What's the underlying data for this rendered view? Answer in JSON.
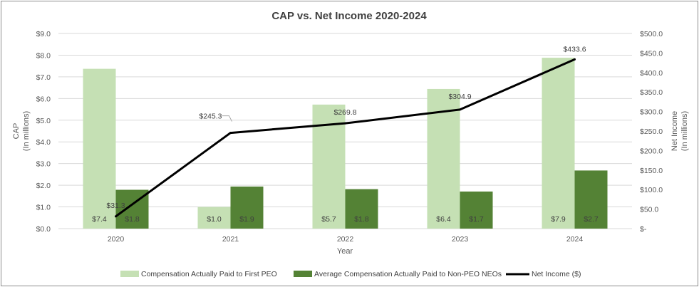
{
  "chart_data": {
    "type": "bar+line",
    "title": "CAP vs. Net Income 2020-2024",
    "xlabel": "Year",
    "ylabel_left": [
      "CAP",
      "(In millions)"
    ],
    "ylabel_right": [
      "Net Income",
      "(In millions)"
    ],
    "categories": [
      "2020",
      "2021",
      "2022",
      "2023",
      "2024"
    ],
    "ylim_left": [
      0,
      9
    ],
    "ylim_right": [
      0,
      500
    ],
    "left_ticks": [
      "$0.0",
      "$1.0",
      "$2.0",
      "$3.0",
      "$4.0",
      "$5.0",
      "$6.0",
      "$7.0",
      "$8.0",
      "$9.0"
    ],
    "right_ticks": [
      "$-",
      "$50.0",
      "$100.0",
      "$150.0",
      "$200.0",
      "$250.0",
      "$300.0",
      "$350.0",
      "$400.0",
      "$450.0",
      "$500.0"
    ],
    "series": [
      {
        "name": "Compensation Actually Paid to First PEO",
        "kind": "bar",
        "axis": "left",
        "color": "#c5e0b4",
        "values": [
          7.37,
          1.0,
          5.72,
          6.44,
          7.88
        ],
        "labels": [
          "$7.4",
          "$1.0",
          "$5.7",
          "$6.4",
          "$7.9"
        ]
      },
      {
        "name": "Average Compensation Actually Paid to Non-PEO NEOs",
        "kind": "bar",
        "axis": "left",
        "color": "#548235",
        "values": [
          1.79,
          1.94,
          1.82,
          1.71,
          2.68
        ],
        "labels": [
          "$1.8",
          "$1.9",
          "$1.8",
          "$1.7",
          "$2.7"
        ]
      },
      {
        "name": "Net Income ($)",
        "kind": "line",
        "axis": "right",
        "color": "#000000",
        "values": [
          31.3,
          245.3,
          269.8,
          304.9,
          433.6
        ],
        "labels": [
          "$31.3",
          "$245.3",
          "$269.8",
          "$304.9",
          "$433.6"
        ]
      }
    ]
  }
}
